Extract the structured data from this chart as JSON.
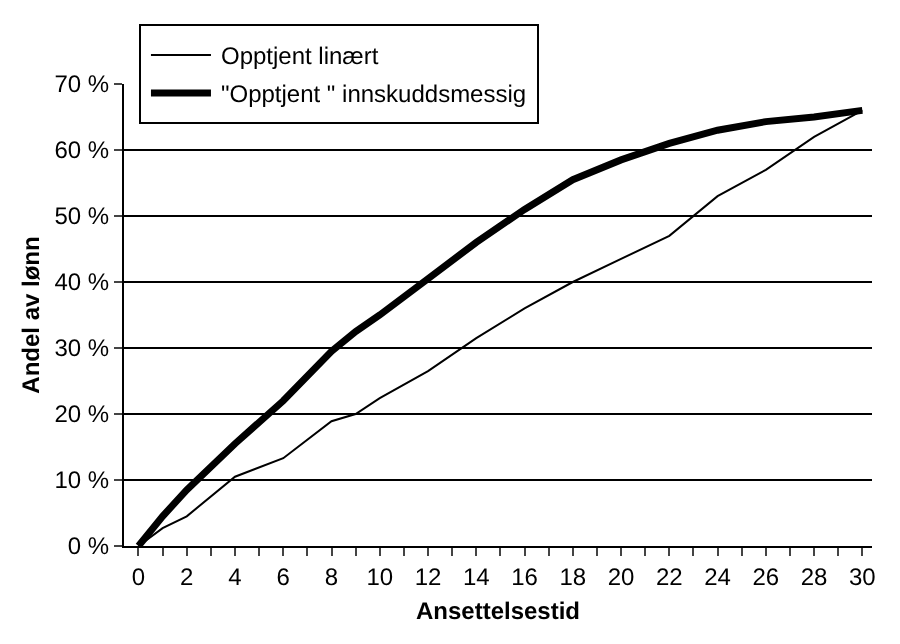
{
  "chart_data": {
    "type": "line",
    "xlabel": "Ansettelsestid",
    "ylabel": "Andel av lønn",
    "x": [
      0,
      1,
      2,
      4,
      6,
      8,
      9,
      10,
      12,
      14,
      16,
      18,
      20,
      22,
      24,
      26,
      28,
      30
    ],
    "series": [
      {
        "name": "Opptjent linært",
        "color": "#000000",
        "values": [
          0,
          2.7,
          4.5,
          10.5,
          13.3,
          18.9,
          20,
          22.4,
          26.5,
          31.5,
          36,
          40,
          43.5,
          47,
          53,
          57,
          62,
          66
        ]
      },
      {
        "name": "\"Opptjent \" innskuddsmessig",
        "color": "#000000",
        "values": [
          0,
          4.5,
          8.5,
          15.5,
          22,
          29.5,
          32.5,
          35,
          40.5,
          46,
          51,
          55.5,
          58.5,
          61,
          63,
          64.3,
          65,
          66
        ]
      }
    ],
    "xlim": [
      -0.6,
      30.4
    ],
    "xticks": [
      0,
      {
        "value": 1,
        "label": null
      },
      2,
      {
        "value": 3,
        "label": null
      },
      4,
      {
        "value": 5,
        "label": null
      },
      6,
      {
        "value": 7,
        "label": null
      },
      8,
      {
        "value": 9,
        "label": null
      },
      10,
      {
        "value": 11,
        "label": null
      },
      12,
      {
        "value": 13,
        "label": null
      },
      14,
      {
        "value": 15,
        "label": null
      },
      16,
      {
        "value": 17,
        "label": null
      },
      18,
      {
        "value": 19,
        "label": null
      },
      20,
      {
        "value": 21,
        "label": null
      },
      22,
      {
        "value": 23,
        "label": null
      },
      24,
      {
        "value": 25,
        "label": null
      },
      26,
      {
        "value": 27,
        "label": null
      },
      28,
      {
        "value": 29,
        "label": null
      },
      30
    ],
    "ylim": [
      0,
      70
    ],
    "yticks": [
      {
        "value": 0,
        "label": "0 %"
      },
      {
        "value": 10,
        "label": "10 %"
      },
      {
        "value": 20,
        "label": "20 %"
      },
      {
        "value": 30,
        "label": "30 %"
      },
      {
        "value": 40,
        "label": "40 %"
      },
      {
        "value": 50,
        "label": "50 %"
      },
      {
        "value": 60,
        "label": "60 %"
      },
      {
        "value": 70,
        "label": "70 %"
      }
    ],
    "grid": "y",
    "legend": "top left",
    "marker": "none",
    "line_style": "solid"
  }
}
